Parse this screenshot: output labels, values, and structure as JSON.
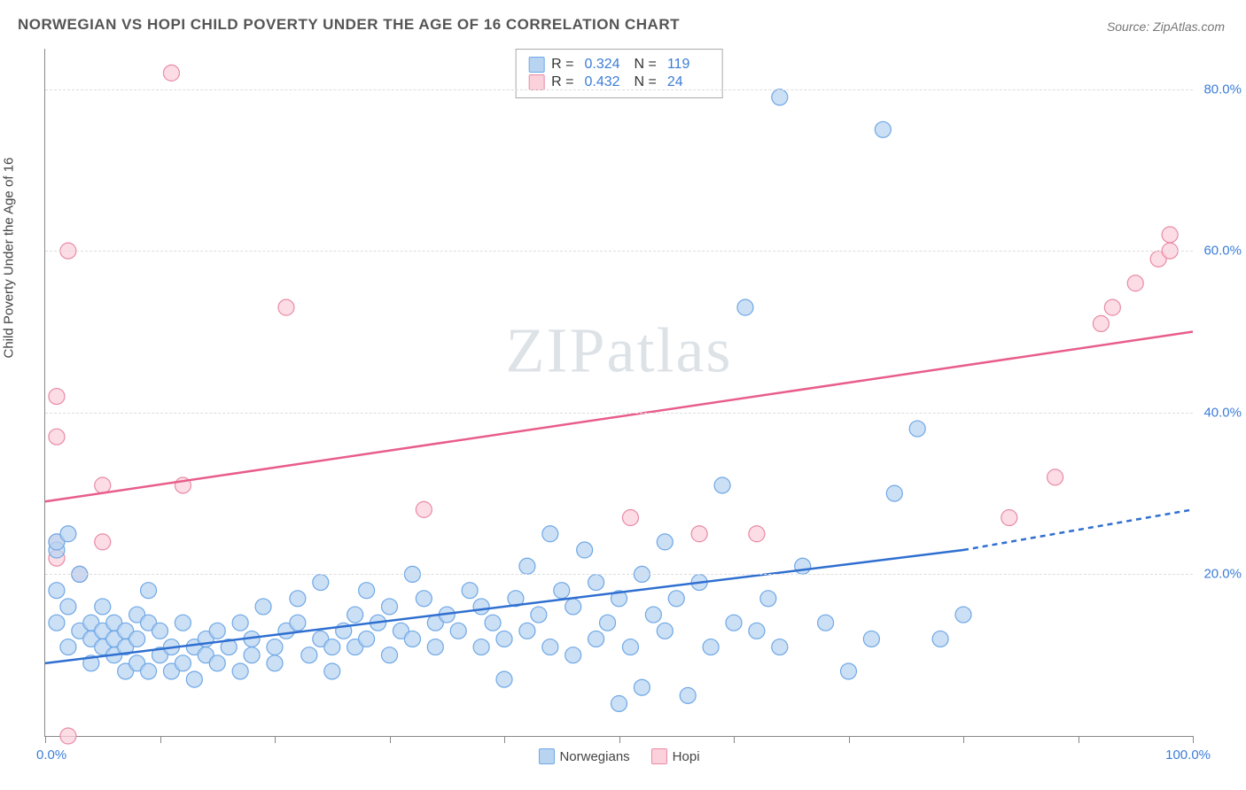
{
  "title": "NORWEGIAN VS HOPI CHILD POVERTY UNDER THE AGE OF 16 CORRELATION CHART",
  "source": "Source: ZipAtlas.com",
  "y_axis_label": "Child Poverty Under the Age of 16",
  "watermark_zip": "ZIP",
  "watermark_atlas": "atlas",
  "chart": {
    "type": "scatter",
    "xlim": [
      0,
      100
    ],
    "ylim": [
      0,
      85
    ],
    "x_ticks": [
      0,
      10,
      20,
      30,
      40,
      50,
      60,
      70,
      80,
      90,
      100
    ],
    "y_gridlines": [
      20,
      40,
      60,
      80
    ],
    "y_tick_labels": [
      "20.0%",
      "40.0%",
      "60.0%",
      "80.0%"
    ],
    "x_label_min": "0.0%",
    "x_label_max": "100.0%",
    "background_color": "#ffffff",
    "grid_color": "#dddddd",
    "axis_color": "#888888",
    "marker_radius": 9,
    "marker_stroke_width": 1.2,
    "trend_line_width": 2.5
  },
  "series": {
    "norwegians": {
      "label": "Norwegians",
      "fill": "#b9d4f1",
      "stroke": "#6fa8e6",
      "r_value": "0.324",
      "n_value": "119",
      "trend_color": "#2f6fd0",
      "trend": {
        "x1": 0,
        "y1": 9,
        "x2": 80,
        "y2": 23
      },
      "trend_dashed": {
        "x1": 80,
        "y1": 23,
        "x2": 100,
        "y2": 28
      },
      "points": [
        [
          1,
          14
        ],
        [
          1,
          18
        ],
        [
          1,
          23
        ],
        [
          1,
          24
        ],
        [
          2,
          16
        ],
        [
          2,
          11
        ],
        [
          2,
          25
        ],
        [
          3,
          13
        ],
        [
          3,
          20
        ],
        [
          4,
          12
        ],
        [
          4,
          14
        ],
        [
          4,
          9
        ],
        [
          5,
          16
        ],
        [
          5,
          11
        ],
        [
          5,
          13
        ],
        [
          6,
          14
        ],
        [
          6,
          10
        ],
        [
          6,
          12
        ],
        [
          7,
          11
        ],
        [
          7,
          8
        ],
        [
          7,
          13
        ],
        [
          8,
          12
        ],
        [
          8,
          15
        ],
        [
          8,
          9
        ],
        [
          9,
          14
        ],
        [
          9,
          8
        ],
        [
          9,
          18
        ],
        [
          10,
          10
        ],
        [
          10,
          13
        ],
        [
          11,
          8
        ],
        [
          11,
          11
        ],
        [
          12,
          14
        ],
        [
          12,
          9
        ],
        [
          13,
          11
        ],
        [
          13,
          7
        ],
        [
          14,
          12
        ],
        [
          14,
          10
        ],
        [
          15,
          13
        ],
        [
          15,
          9
        ],
        [
          16,
          11
        ],
        [
          17,
          14
        ],
        [
          17,
          8
        ],
        [
          18,
          12
        ],
        [
          18,
          10
        ],
        [
          19,
          16
        ],
        [
          20,
          11
        ],
        [
          20,
          9
        ],
        [
          21,
          13
        ],
        [
          22,
          14
        ],
        [
          22,
          17
        ],
        [
          23,
          10
        ],
        [
          24,
          12
        ],
        [
          24,
          19
        ],
        [
          25,
          11
        ],
        [
          25,
          8
        ],
        [
          26,
          13
        ],
        [
          27,
          15
        ],
        [
          27,
          11
        ],
        [
          28,
          12
        ],
        [
          28,
          18
        ],
        [
          29,
          14
        ],
        [
          30,
          10
        ],
        [
          30,
          16
        ],
        [
          31,
          13
        ],
        [
          32,
          12
        ],
        [
          32,
          20
        ],
        [
          33,
          17
        ],
        [
          34,
          11
        ],
        [
          34,
          14
        ],
        [
          35,
          15
        ],
        [
          36,
          13
        ],
        [
          37,
          18
        ],
        [
          38,
          11
        ],
        [
          38,
          16
        ],
        [
          39,
          14
        ],
        [
          40,
          12
        ],
        [
          40,
          7
        ],
        [
          41,
          17
        ],
        [
          42,
          13
        ],
        [
          42,
          21
        ],
        [
          43,
          15
        ],
        [
          44,
          11
        ],
        [
          44,
          25
        ],
        [
          45,
          18
        ],
        [
          46,
          10
        ],
        [
          46,
          16
        ],
        [
          47,
          23
        ],
        [
          48,
          12
        ],
        [
          48,
          19
        ],
        [
          49,
          14
        ],
        [
          50,
          17
        ],
        [
          50,
          4
        ],
        [
          51,
          11
        ],
        [
          52,
          20
        ],
        [
          52,
          6
        ],
        [
          53,
          15
        ],
        [
          54,
          13
        ],
        [
          54,
          24
        ],
        [
          55,
          17
        ],
        [
          56,
          5
        ],
        [
          57,
          19
        ],
        [
          58,
          11
        ],
        [
          59,
          31
        ],
        [
          60,
          14
        ],
        [
          61,
          53
        ],
        [
          62,
          13
        ],
        [
          63,
          17
        ],
        [
          64,
          79
        ],
        [
          64,
          11
        ],
        [
          66,
          21
        ],
        [
          68,
          14
        ],
        [
          70,
          8
        ],
        [
          72,
          12
        ],
        [
          73,
          75
        ],
        [
          74,
          30
        ],
        [
          76,
          38
        ],
        [
          78,
          12
        ],
        [
          80,
          15
        ]
      ]
    },
    "hopi": {
      "label": "Hopi",
      "fill": "#fbd1dc",
      "stroke": "#e98aa4",
      "r_value": "0.432",
      "n_value": "24",
      "trend_color": "#e85d8a",
      "trend": {
        "x1": 0,
        "y1": 29,
        "x2": 100,
        "y2": 50
      },
      "points": [
        [
          1,
          22
        ],
        [
          1,
          37
        ],
        [
          1,
          42
        ],
        [
          1,
          24
        ],
        [
          2,
          60
        ],
        [
          2,
          0
        ],
        [
          3,
          20
        ],
        [
          5,
          24
        ],
        [
          5,
          31
        ],
        [
          11,
          82
        ],
        [
          12,
          31
        ],
        [
          21,
          53
        ],
        [
          33,
          28
        ],
        [
          51,
          27
        ],
        [
          57,
          25
        ],
        [
          62,
          25
        ],
        [
          84,
          27
        ],
        [
          88,
          32
        ],
        [
          92,
          51
        ],
        [
          93,
          53
        ],
        [
          95,
          56
        ],
        [
          97,
          59
        ],
        [
          98,
          60
        ],
        [
          98,
          62
        ]
      ]
    }
  },
  "legend": {
    "r_label": "R =",
    "n_label": "N ="
  }
}
